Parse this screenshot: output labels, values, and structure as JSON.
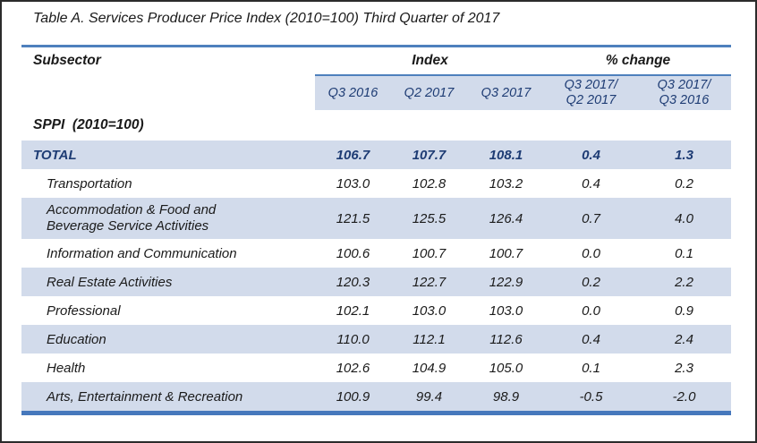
{
  "title": "Table A. Services Producer Price Index (2010=100) Third Quarter of 2017",
  "colors": {
    "accent_blue": "#4E80BD",
    "bottom_rule_blue": "#4678BC",
    "row_stripe": "#D2DBEB",
    "navy_text": "#1E3C74"
  },
  "table": {
    "group_headers": {
      "subsector": "Subsector",
      "index": "Index",
      "change": "% change"
    },
    "quarter_headers": [
      {
        "line1": "Q3 2016",
        "line2": ""
      },
      {
        "line1": "Q2 2017",
        "line2": ""
      },
      {
        "line1": "Q3 2017",
        "line2": ""
      },
      {
        "line1": "Q3 2017/",
        "line2": "Q2 2017"
      },
      {
        "line1": "Q3 2017/",
        "line2": "Q3 2016"
      }
    ],
    "section_label": "SPPI  (2010=100)",
    "rows": [
      {
        "label": "TOTAL",
        "values": [
          "106.7",
          "107.7",
          "108.1",
          "0.4",
          "1.3"
        ]
      },
      {
        "label": "Transportation",
        "values": [
          "103.0",
          "102.8",
          "103.2",
          "0.4",
          "0.2"
        ]
      },
      {
        "label": "Accommodation & Food and Beverage Service Activities",
        "values": [
          "121.5",
          "125.5",
          "126.4",
          "0.7",
          "4.0"
        ]
      },
      {
        "label": "Information and Communication",
        "values": [
          "100.6",
          "100.7",
          "100.7",
          "0.0",
          "0.1"
        ]
      },
      {
        "label": "Real Estate Activities",
        "values": [
          "120.3",
          "122.7",
          "122.9",
          "0.2",
          "2.2"
        ]
      },
      {
        "label": "Professional",
        "values": [
          "102.1",
          "103.0",
          "103.0",
          "0.0",
          "0.9"
        ]
      },
      {
        "label": "Education",
        "values": [
          "110.0",
          "112.1",
          "112.6",
          "0.4",
          "2.4"
        ]
      },
      {
        "label": "Health",
        "values": [
          "102.6",
          "104.9",
          "105.0",
          "0.1",
          "2.3"
        ]
      },
      {
        "label": "Arts, Entertainment &  Recreation",
        "values": [
          "100.9",
          "99.4",
          "98.9",
          "-0.5",
          "-2.0"
        ]
      }
    ]
  }
}
